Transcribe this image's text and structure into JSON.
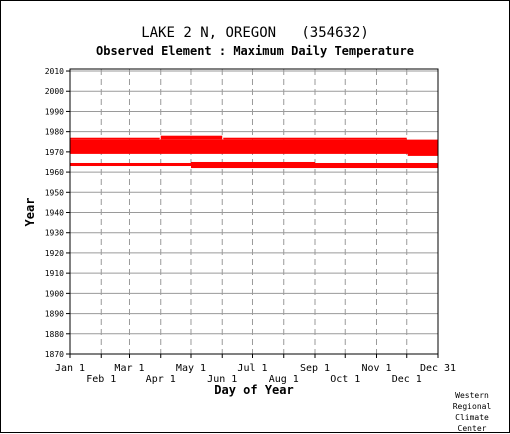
{
  "chart_data": {
    "type": "scatter",
    "title": "LAKE 2 N, OREGON   (354632)",
    "subtitle": "Observed Element : Maximum Daily Temperature",
    "xlabel": "Day of Year",
    "ylabel": "Year",
    "ylim": [
      1870,
      2011
    ],
    "yticks": [
      1870,
      1880,
      1890,
      1900,
      1910,
      1920,
      1930,
      1940,
      1950,
      1960,
      1970,
      1980,
      1990,
      2000,
      2010
    ],
    "xlim": [
      1,
      366
    ],
    "xticks": [
      {
        "label": "Jan 1",
        "day": 1,
        "row": 1
      },
      {
        "label": "Feb 1",
        "day": 32,
        "row": 2
      },
      {
        "label": "Mar 1",
        "day": 60,
        "row": 1
      },
      {
        "label": "Apr 1",
        "day": 91,
        "row": 2
      },
      {
        "label": "May 1",
        "day": 121,
        "row": 1
      },
      {
        "label": "Jun 1",
        "day": 152,
        "row": 2
      },
      {
        "label": "Jul 1",
        "day": 182,
        "row": 1
      },
      {
        "label": "Aug 1",
        "day": 213,
        "row": 2
      },
      {
        "label": "Sep 1",
        "day": 244,
        "row": 1
      },
      {
        "label": "Oct 1",
        "day": 274,
        "row": 2
      },
      {
        "label": "Nov 1",
        "day": 305,
        "row": 1
      },
      {
        "label": "Dec 1",
        "day": 335,
        "row": 2
      },
      {
        "label": "Dec 31",
        "day": 366,
        "row": 1
      }
    ],
    "grid": true,
    "series": [
      {
        "color": "#ff0000",
        "bands": [
          {
            "day_start": 1,
            "day_end": 366,
            "year_start": 1969,
            "year_end": 1976
          },
          {
            "day_start": 1,
            "day_end": 90,
            "year_start": 1976,
            "year_end": 1977
          },
          {
            "day_start": 91,
            "day_end": 152,
            "year_start": 1976,
            "year_end": 1978
          },
          {
            "day_start": 153,
            "day_end": 335,
            "year_start": 1976,
            "year_end": 1977
          },
          {
            "day_start": 336,
            "day_end": 366,
            "year_start": 1968,
            "year_end": 1976
          },
          {
            "day_start": 1,
            "day_end": 366,
            "year_start": 1963,
            "year_end": 1964.5
          },
          {
            "day_start": 121,
            "day_end": 244,
            "year_start": 1962,
            "year_end": 1965
          },
          {
            "day_start": 244,
            "day_end": 366,
            "year_start": 1962,
            "year_end": 1963.5
          }
        ]
      }
    ]
  },
  "credit": {
    "line1": "Western",
    "line2": "Regional",
    "line3": "Climate",
    "line4": "Center"
  }
}
